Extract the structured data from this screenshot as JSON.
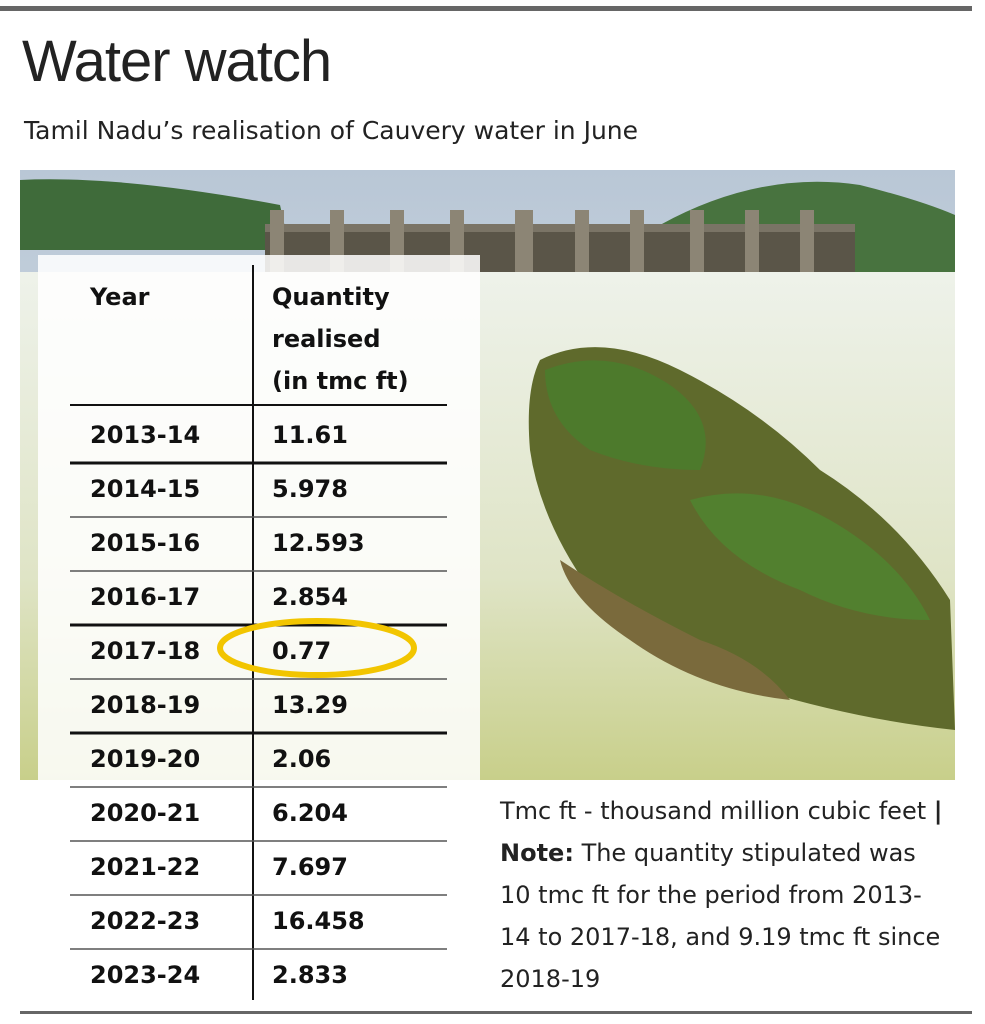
{
  "header": {
    "title": "Water watch",
    "subtitle": "Tamil Nadu’s realisation of Cauvery water in June"
  },
  "table": {
    "columns": [
      "Year",
      "Quantity realised (in tmc ft)"
    ],
    "rows": [
      [
        "2013-14",
        "11.61"
      ],
      [
        "2014-15",
        "5.978"
      ],
      [
        "2015-16",
        "12.593"
      ],
      [
        "2016-17",
        "2.854"
      ],
      [
        "2017-18",
        "0.77"
      ],
      [
        "2018-19",
        "13.29"
      ],
      [
        "2019-20",
        "2.06"
      ],
      [
        "2020-21",
        "6.204"
      ],
      [
        "2021-22",
        "7.697"
      ],
      [
        "2022-23",
        "16.458"
      ],
      [
        "2023-24",
        "2.833"
      ]
    ]
  },
  "footnote": {
    "definition": "Tmc ft - thousand million cubic feet",
    "separator": "|",
    "note_label": "Note:",
    "note_text": "The quantity stipulated was 10 tmc ft for the period from 2013-14 to 2017-18, and 9.19 tmc ft since 2018-19"
  }
}
